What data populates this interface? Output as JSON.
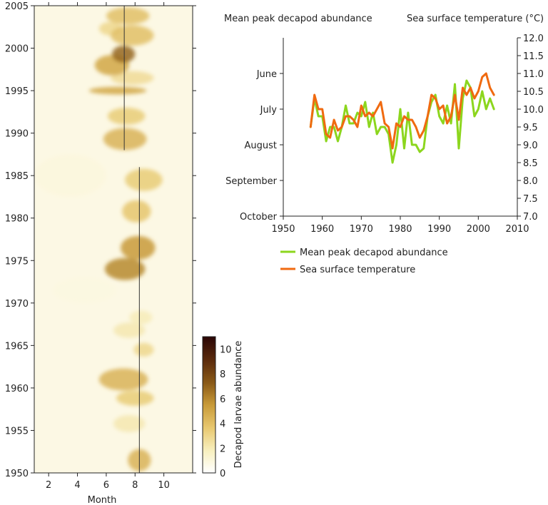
{
  "chart_data": [
    {
      "type": "heatmap",
      "xlabel": "Month",
      "x_ticks": [
        2,
        4,
        6,
        8,
        10
      ],
      "xlim": [
        1,
        12
      ],
      "y_ticks": [
        1950,
        1955,
        1960,
        1965,
        1970,
        1975,
        1980,
        1985,
        1990,
        1995,
        2000,
        2005
      ],
      "ylim": [
        1950,
        2005
      ],
      "colorbar": {
        "label": "Decapod larvae abundance",
        "ticks": [
          0,
          2,
          4,
          6,
          8,
          10
        ],
        "range": [
          0,
          11
        ],
        "colors": [
          "#ffffff",
          "#f8f0c0",
          "#e8c870",
          "#c89a38",
          "#8a5a18",
          "#5a2a0c",
          "#2a0606"
        ]
      },
      "peak_lines": [
        {
          "month": 8.3,
          "year_start": 1950,
          "year_end": 1986
        },
        {
          "month": 7.25,
          "year_start": 1988,
          "year_end": 2005
        }
      ],
      "blobs": [
        {
          "month": 8.3,
          "year": 1951.5,
          "value": 4.5,
          "sm": 0.8,
          "sy": 1.3
        },
        {
          "month": 7.6,
          "year": 1955.8,
          "value": 2.2,
          "sm": 1.1,
          "sy": 1.0
        },
        {
          "month": 8.0,
          "year": 1958.8,
          "value": 3.5,
          "sm": 1.3,
          "sy": 0.9
        },
        {
          "month": 7.2,
          "year": 1961.0,
          "value": 4.5,
          "sm": 1.7,
          "sy": 1.3
        },
        {
          "month": 8.6,
          "year": 1964.5,
          "value": 3.0,
          "sm": 0.7,
          "sy": 0.8
        },
        {
          "month": 7.6,
          "year": 1966.8,
          "value": 2.2,
          "sm": 1.1,
          "sy": 0.9
        },
        {
          "month": 8.4,
          "year": 1968.3,
          "value": 2.0,
          "sm": 0.8,
          "sy": 0.8
        },
        {
          "month": 7.3,
          "year": 1974.0,
          "value": 6.0,
          "sm": 1.4,
          "sy": 1.3
        },
        {
          "month": 8.2,
          "year": 1976.5,
          "value": 5.5,
          "sm": 1.2,
          "sy": 1.4
        },
        {
          "month": 8.1,
          "year": 1980.8,
          "value": 3.8,
          "sm": 1.0,
          "sy": 1.3
        },
        {
          "month": 8.6,
          "year": 1984.5,
          "value": 3.5,
          "sm": 1.3,
          "sy": 1.3
        },
        {
          "month": 7.3,
          "year": 1989.3,
          "value": 4.5,
          "sm": 1.5,
          "sy": 1.3
        },
        {
          "month": 7.4,
          "year": 1992.0,
          "value": 3.5,
          "sm": 1.3,
          "sy": 1.0
        },
        {
          "month": 6.8,
          "year": 1995.0,
          "value": 5.0,
          "sm": 2.0,
          "sy": 0.45
        },
        {
          "month": 7.8,
          "year": 1996.5,
          "value": 2.8,
          "sm": 1.5,
          "sy": 0.8
        },
        {
          "month": 6.4,
          "year": 1998.0,
          "value": 5.0,
          "sm": 1.2,
          "sy": 1.2
        },
        {
          "month": 7.2,
          "year": 1999.3,
          "value": 7.0,
          "sm": 0.8,
          "sy": 1.0
        },
        {
          "month": 7.8,
          "year": 2001.5,
          "value": 4.0,
          "sm": 1.5,
          "sy": 1.2
        },
        {
          "month": 6.3,
          "year": 2002.3,
          "value": 3.0,
          "sm": 0.8,
          "sy": 0.8
        },
        {
          "month": 7.5,
          "year": 2003.8,
          "value": 4.0,
          "sm": 1.5,
          "sy": 1.0
        },
        {
          "month": 3.5,
          "year": 1985.0,
          "value": 1.0,
          "sm": 2.5,
          "sy": 2.5
        },
        {
          "month": 4.5,
          "year": 1971.5,
          "value": 0.9,
          "sm": 2.2,
          "sy": 1.5
        }
      ]
    },
    {
      "type": "line",
      "left_axis_title": "Mean peak decapod abundance",
      "right_axis_title": "Sea surface temperature (°C)",
      "xlim": [
        1950,
        2010
      ],
      "x_ticks": [
        1950,
        1960,
        1970,
        1980,
        1990,
        2000,
        2010
      ],
      "left_ticks": [
        "June",
        "July",
        "August",
        "September",
        "October"
      ],
      "right_ticks": [
        "7.0",
        "7.5",
        "8.0",
        "8.5",
        "9.0",
        "9.5",
        "10.0",
        "10.5",
        "11.0",
        "11.5",
        "12.0"
      ],
      "ylim": [
        7.0,
        12.0
      ],
      "x": [
        1957,
        1958,
        1959,
        1960,
        1961,
        1962,
        1963,
        1964,
        1965,
        1966,
        1967,
        1968,
        1969,
        1970,
        1971,
        1972,
        1973,
        1974,
        1975,
        1976,
        1977,
        1978,
        1979,
        1980,
        1981,
        1982,
        1983,
        1984,
        1985,
        1986,
        1987,
        1988,
        1989,
        1990,
        1991,
        1992,
        1993,
        1994,
        1995,
        1996,
        1997,
        1998,
        1999,
        2000,
        2001,
        2002,
        2003,
        2004
      ],
      "series": [
        {
          "name": "Mean peak decapod abundance",
          "color": "#8cd61e",
          "values": [
            9.5,
            10.3,
            9.8,
            9.8,
            9.1,
            9.5,
            9.5,
            9.1,
            9.5,
            10.1,
            9.6,
            9.6,
            9.9,
            9.8,
            10.2,
            9.5,
            9.9,
            9.3,
            9.5,
            9.5,
            9.3,
            8.5,
            9.0,
            10.0,
            8.9,
            9.9,
            9.0,
            9.0,
            8.8,
            8.9,
            9.8,
            10.2,
            10.4,
            9.8,
            9.6,
            10.1,
            9.6,
            10.7,
            8.9,
            10.3,
            10.8,
            10.6,
            9.8,
            10.0,
            10.5,
            10.0,
            10.3,
            10.0
          ]
        },
        {
          "name": "Sea surface temperature",
          "color": "#f06a10",
          "values": [
            9.5,
            10.4,
            10.0,
            10.0,
            9.3,
            9.2,
            9.7,
            9.4,
            9.5,
            9.8,
            9.8,
            9.7,
            9.5,
            10.1,
            9.8,
            9.9,
            9.8,
            10.0,
            10.2,
            9.6,
            9.5,
            8.9,
            9.6,
            9.5,
            9.8,
            9.7,
            9.7,
            9.5,
            9.2,
            9.4,
            9.8,
            10.4,
            10.3,
            10.0,
            10.1,
            9.6,
            9.8,
            10.4,
            9.7,
            10.6,
            10.4,
            10.6,
            10.3,
            10.5,
            10.9,
            11.0,
            10.6,
            10.4
          ]
        }
      ],
      "legend_position": "bottom"
    }
  ]
}
